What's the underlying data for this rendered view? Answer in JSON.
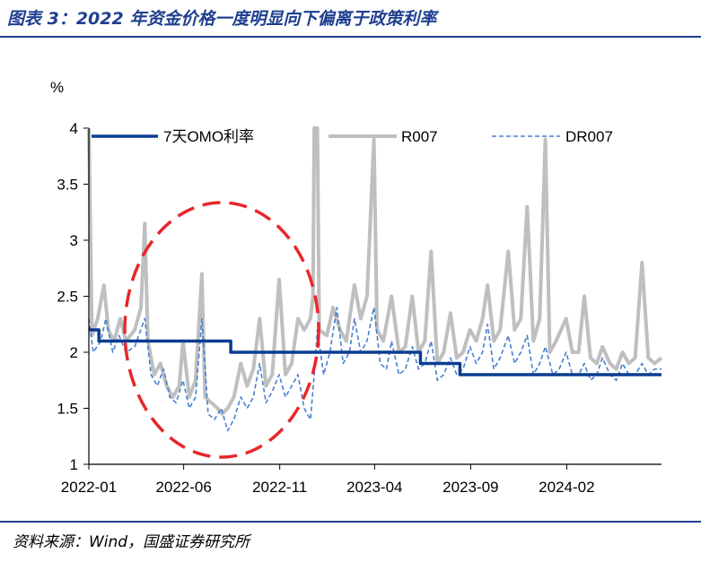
{
  "header": {
    "title": "图表 3：2022 年资金价格一度明显向下偏离于政策利率"
  },
  "footer": {
    "source": "资料来源：Wind，国盛证券研究所"
  },
  "colors": {
    "omo": "#0a3d91",
    "r007": "#bfbfbf",
    "dr007": "#4a7fcf",
    "circle": "#e8262a",
    "brand": "#1f3f8f"
  },
  "chart_data": {
    "type": "line",
    "ylabel": "%",
    "ylim": [
      1,
      4
    ],
    "yticks": [
      "1",
      "1.5",
      "2",
      "2.5",
      "3",
      "3.5",
      "4"
    ],
    "xticks": [
      "2022-01",
      "2022-06",
      "2022-11",
      "2023-04",
      "2023-09",
      "2024-02"
    ],
    "xrange": [
      "2022-01",
      "2024-07"
    ],
    "legend_position": "top",
    "annotation": "dashed red ellipse around 2022-03 to 2022-12 period",
    "series": [
      {
        "name": "7天OMO利率",
        "step": true,
        "points": [
          [
            "2022-01-01",
            2.2
          ],
          [
            "2022-01-17",
            2.1
          ],
          [
            "2022-08-15",
            2.0
          ],
          [
            "2023-06-13",
            1.9
          ],
          [
            "2023-08-15",
            1.8
          ],
          [
            "2024-07-01",
            1.8
          ]
        ]
      },
      {
        "name": "R007",
        "points": [
          [
            "2022-01-01",
            4.0
          ],
          [
            "2022-01-06",
            2.15
          ],
          [
            "2022-01-15",
            2.3
          ],
          [
            "2022-01-25",
            2.6
          ],
          [
            "2022-02-01",
            2.2
          ],
          [
            "2022-02-10",
            2.1
          ],
          [
            "2022-02-20",
            2.3
          ],
          [
            "2022-03-01",
            2.1
          ],
          [
            "2022-03-15",
            2.2
          ],
          [
            "2022-03-25",
            2.4
          ],
          [
            "2022-03-31",
            3.15
          ],
          [
            "2022-04-05",
            2.1
          ],
          [
            "2022-04-15",
            1.8
          ],
          [
            "2022-04-25",
            1.9
          ],
          [
            "2022-05-05",
            1.7
          ],
          [
            "2022-05-15",
            1.6
          ],
          [
            "2022-05-25",
            1.7
          ],
          [
            "2022-05-31",
            2.1
          ],
          [
            "2022-06-10",
            1.6
          ],
          [
            "2022-06-20",
            1.75
          ],
          [
            "2022-06-30",
            2.7
          ],
          [
            "2022-07-05",
            1.6
          ],
          [
            "2022-07-15",
            1.55
          ],
          [
            "2022-07-25",
            1.5
          ],
          [
            "2022-08-01",
            1.45
          ],
          [
            "2022-08-10",
            1.5
          ],
          [
            "2022-08-20",
            1.6
          ],
          [
            "2022-08-31",
            1.9
          ],
          [
            "2022-09-10",
            1.7
          ],
          [
            "2022-09-20",
            1.85
          ],
          [
            "2022-09-30",
            2.3
          ],
          [
            "2022-10-10",
            1.7
          ],
          [
            "2022-10-20",
            1.8
          ],
          [
            "2022-10-31",
            2.65
          ],
          [
            "2022-11-10",
            1.8
          ],
          [
            "2022-11-20",
            1.9
          ],
          [
            "2022-11-30",
            2.3
          ],
          [
            "2022-12-10",
            2.2
          ],
          [
            "2022-12-20",
            2.3
          ],
          [
            "2022-12-24",
            2.5
          ],
          [
            "2022-12-26",
            4.0
          ],
          [
            "2022-12-31",
            4.0
          ],
          [
            "2023-01-03",
            2.2
          ],
          [
            "2023-01-15",
            2.15
          ],
          [
            "2023-01-25",
            2.4
          ],
          [
            "2023-02-05",
            2.2
          ],
          [
            "2023-02-15",
            2.1
          ],
          [
            "2023-02-28",
            2.6
          ],
          [
            "2023-03-10",
            2.3
          ],
          [
            "2023-03-20",
            2.5
          ],
          [
            "2023-03-31",
            3.9
          ],
          [
            "2023-04-05",
            2.2
          ],
          [
            "2023-04-15",
            2.1
          ],
          [
            "2023-04-28",
            2.5
          ],
          [
            "2023-05-10",
            2.0
          ],
          [
            "2023-05-20",
            2.05
          ],
          [
            "2023-05-31",
            2.5
          ],
          [
            "2023-06-10",
            2.0
          ],
          [
            "2023-06-20",
            2.1
          ],
          [
            "2023-06-30",
            2.9
          ],
          [
            "2023-07-10",
            1.9
          ],
          [
            "2023-07-20",
            2.0
          ],
          [
            "2023-07-31",
            2.35
          ],
          [
            "2023-08-10",
            1.95
          ],
          [
            "2023-08-20",
            2.0
          ],
          [
            "2023-08-31",
            2.2
          ],
          [
            "2023-09-10",
            2.1
          ],
          [
            "2023-09-20",
            2.3
          ],
          [
            "2023-09-28",
            2.6
          ],
          [
            "2023-10-08",
            2.1
          ],
          [
            "2023-10-18",
            2.2
          ],
          [
            "2023-10-31",
            2.9
          ],
          [
            "2023-11-10",
            2.2
          ],
          [
            "2023-11-20",
            2.3
          ],
          [
            "2023-11-30",
            3.3
          ],
          [
            "2023-12-10",
            2.1
          ],
          [
            "2023-12-20",
            2.3
          ],
          [
            "2023-12-29",
            3.9
          ],
          [
            "2024-01-05",
            2.0
          ],
          [
            "2024-01-15",
            2.1
          ],
          [
            "2024-01-31",
            2.3
          ],
          [
            "2024-02-10",
            2.0
          ],
          [
            "2024-02-20",
            2.0
          ],
          [
            "2024-02-29",
            2.5
          ],
          [
            "2024-03-10",
            1.95
          ],
          [
            "2024-03-20",
            1.9
          ],
          [
            "2024-03-29",
            2.05
          ],
          [
            "2024-04-10",
            1.9
          ],
          [
            "2024-04-20",
            1.85
          ],
          [
            "2024-04-30",
            2.0
          ],
          [
            "2024-05-10",
            1.9
          ],
          [
            "2024-05-20",
            1.95
          ],
          [
            "2024-05-31",
            2.8
          ],
          [
            "2024-06-10",
            1.95
          ],
          [
            "2024-06-20",
            1.9
          ],
          [
            "2024-07-01",
            1.95
          ]
        ]
      },
      {
        "name": "DR007",
        "dashed": true,
        "points": [
          [
            "2022-01-01",
            2.3
          ],
          [
            "2022-01-08",
            2.0
          ],
          [
            "2022-01-20",
            2.1
          ],
          [
            "2022-01-28",
            2.3
          ],
          [
            "2022-02-08",
            2.0
          ],
          [
            "2022-02-18",
            2.15
          ],
          [
            "2022-03-01",
            2.0
          ],
          [
            "2022-03-15",
            2.05
          ],
          [
            "2022-03-31",
            2.3
          ],
          [
            "2022-04-10",
            1.8
          ],
          [
            "2022-04-20",
            1.7
          ],
          [
            "2022-04-30",
            1.85
          ],
          [
            "2022-05-10",
            1.6
          ],
          [
            "2022-05-20",
            1.55
          ],
          [
            "2022-05-31",
            1.75
          ],
          [
            "2022-06-10",
            1.5
          ],
          [
            "2022-06-20",
            1.6
          ],
          [
            "2022-06-30",
            2.3
          ],
          [
            "2022-07-10",
            1.45
          ],
          [
            "2022-07-20",
            1.4
          ],
          [
            "2022-07-31",
            1.5
          ],
          [
            "2022-08-10",
            1.3
          ],
          [
            "2022-08-20",
            1.4
          ],
          [
            "2022-08-31",
            1.6
          ],
          [
            "2022-09-10",
            1.5
          ],
          [
            "2022-09-20",
            1.6
          ],
          [
            "2022-09-30",
            1.9
          ],
          [
            "2022-10-10",
            1.55
          ],
          [
            "2022-10-20",
            1.65
          ],
          [
            "2022-10-31",
            1.8
          ],
          [
            "2022-11-10",
            1.6
          ],
          [
            "2022-11-20",
            1.7
          ],
          [
            "2022-11-30",
            1.8
          ],
          [
            "2022-12-10",
            1.5
          ],
          [
            "2022-12-20",
            1.4
          ],
          [
            "2022-12-26",
            1.8
          ],
          [
            "2022-12-31",
            2.2
          ],
          [
            "2023-01-10",
            1.8
          ],
          [
            "2023-01-20",
            2.0
          ],
          [
            "2023-01-31",
            2.4
          ],
          [
            "2023-02-10",
            1.9
          ],
          [
            "2023-02-20",
            2.0
          ],
          [
            "2023-02-28",
            2.3
          ],
          [
            "2023-03-10",
            2.0
          ],
          [
            "2023-03-20",
            2.1
          ],
          [
            "2023-03-31",
            2.4
          ],
          [
            "2023-04-10",
            1.9
          ],
          [
            "2023-04-20",
            1.85
          ],
          [
            "2023-04-28",
            2.1
          ],
          [
            "2023-05-10",
            1.8
          ],
          [
            "2023-05-20",
            1.85
          ],
          [
            "2023-05-31",
            2.05
          ],
          [
            "2023-06-10",
            1.85
          ],
          [
            "2023-06-20",
            1.9
          ],
          [
            "2023-06-30",
            2.1
          ],
          [
            "2023-07-10",
            1.75
          ],
          [
            "2023-07-20",
            1.8
          ],
          [
            "2023-07-31",
            1.95
          ],
          [
            "2023-08-10",
            1.8
          ],
          [
            "2023-08-20",
            1.85
          ],
          [
            "2023-08-31",
            2.05
          ],
          [
            "2023-09-10",
            1.9
          ],
          [
            "2023-09-20",
            2.0
          ],
          [
            "2023-09-28",
            2.25
          ],
          [
            "2023-10-08",
            1.85
          ],
          [
            "2023-10-18",
            1.95
          ],
          [
            "2023-10-31",
            2.15
          ],
          [
            "2023-11-10",
            1.9
          ],
          [
            "2023-11-20",
            2.0
          ],
          [
            "2023-11-30",
            2.15
          ],
          [
            "2023-12-10",
            1.8
          ],
          [
            "2023-12-20",
            1.9
          ],
          [
            "2023-12-29",
            2.05
          ],
          [
            "2024-01-10",
            1.8
          ],
          [
            "2024-01-20",
            1.85
          ],
          [
            "2024-01-31",
            2.0
          ],
          [
            "2024-02-10",
            1.8
          ],
          [
            "2024-02-20",
            1.8
          ],
          [
            "2024-02-29",
            1.9
          ],
          [
            "2024-03-10",
            1.75
          ],
          [
            "2024-03-20",
            1.8
          ],
          [
            "2024-03-29",
            1.95
          ],
          [
            "2024-04-10",
            1.8
          ],
          [
            "2024-04-20",
            1.75
          ],
          [
            "2024-04-30",
            1.9
          ],
          [
            "2024-05-10",
            1.8
          ],
          [
            "2024-05-20",
            1.8
          ],
          [
            "2024-05-31",
            1.9
          ],
          [
            "2024-06-10",
            1.8
          ],
          [
            "2024-06-20",
            1.85
          ],
          [
            "2024-07-01",
            1.85
          ]
        ]
      }
    ]
  }
}
